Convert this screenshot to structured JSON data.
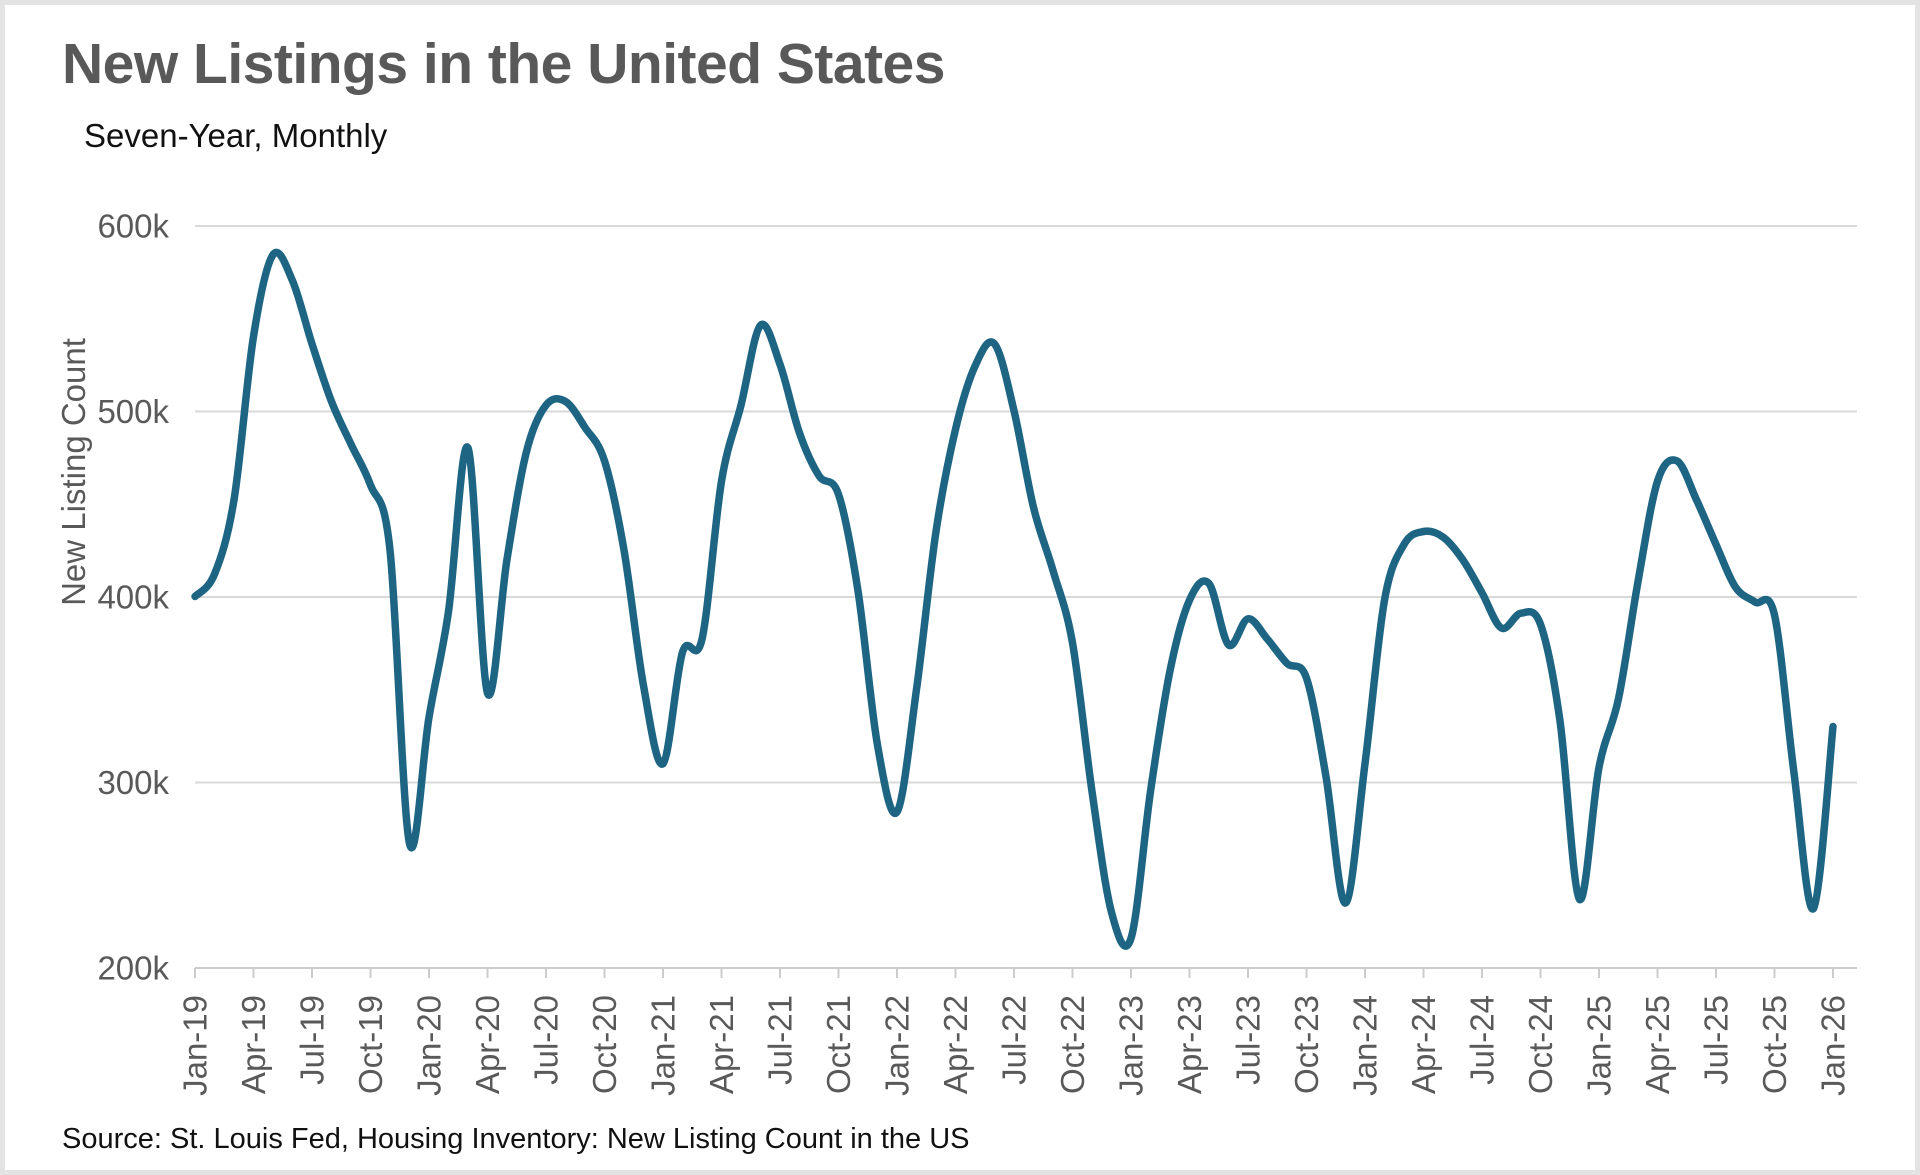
{
  "title": "New Listings in the United States",
  "subtitle": "Seven-Year, Monthly",
  "source": "Source: St. Louis Fed, Housing Inventory: New Listing Count in the US",
  "colors": {
    "line": "#1e6583",
    "gridline": "#d9d9d9",
    "title_text": "#595959",
    "axis_text": "#595959",
    "body_text": "#111111",
    "frame_border": "#e3e3e3"
  },
  "chart_data": {
    "type": "line",
    "title": "New Listings in the United States",
    "subtitle": "Seven-Year, Monthly",
    "xlabel": "",
    "ylabel": "New Listing Count",
    "ylim": [
      200000,
      600000
    ],
    "y_unit": "count",
    "values_unit": "thousands",
    "grid": true,
    "legend": false,
    "line_color": "#1e6583",
    "y_ticks": [
      "600k",
      "500k",
      "400k",
      "300k",
      "200k"
    ],
    "x_tick_labels": [
      "Jan-19",
      "Apr-19",
      "Jul-19",
      "Oct-19",
      "Jan-20",
      "Apr-20",
      "Jul-20",
      "Oct-20",
      "Jan-21",
      "Apr-21",
      "Jul-21",
      "Oct-21",
      "Jan-22",
      "Apr-22",
      "Jul-22",
      "Oct-22",
      "Jan-23",
      "Apr-23",
      "Jul-23",
      "Oct-23",
      "Jan-24",
      "Apr-24",
      "Jul-24",
      "Oct-24",
      "Jan-25",
      "Apr-25",
      "Jul-25",
      "Oct-25",
      "Jan-26"
    ],
    "months": [
      "Jan-19",
      "Feb-19",
      "Mar-19",
      "Apr-19",
      "May-19",
      "Jun-19",
      "Jul-19",
      "Aug-19",
      "Sep-19",
      "Oct-19",
      "Nov-19",
      "Dec-19",
      "Jan-20",
      "Feb-20",
      "Mar-20",
      "Apr-20",
      "May-20",
      "Jun-20",
      "Jul-20",
      "Aug-20",
      "Sep-20",
      "Oct-20",
      "Nov-20",
      "Dec-20",
      "Jan-21",
      "Feb-21",
      "Mar-21",
      "Apr-21",
      "May-21",
      "Jun-21",
      "Jul-21",
      "Aug-21",
      "Sep-21",
      "Oct-21",
      "Nov-21",
      "Dec-21",
      "Jan-22",
      "Feb-22",
      "Mar-22",
      "Apr-22",
      "May-22",
      "Jun-22",
      "Jul-22",
      "Aug-22",
      "Sep-22",
      "Oct-22",
      "Nov-22",
      "Dec-22",
      "Jan-23",
      "Feb-23",
      "Mar-23",
      "Apr-23",
      "May-23",
      "Jun-23",
      "Jul-23",
      "Aug-23",
      "Sep-23",
      "Oct-23",
      "Nov-23",
      "Dec-23",
      "Jan-24",
      "Feb-24",
      "Mar-24",
      "Apr-24",
      "May-24",
      "Jun-24",
      "Jul-24",
      "Aug-24",
      "Sep-24",
      "Oct-24",
      "Nov-24",
      "Dec-24",
      "Jan-25",
      "Feb-25",
      "Mar-25",
      "Apr-25",
      "May-25",
      "Jun-25",
      "Jul-25",
      "Aug-25",
      "Sep-25",
      "Oct-25",
      "Nov-25",
      "Dec-25",
      "Jan-26"
    ],
    "values_k": [
      400,
      412,
      452,
      540,
      584,
      570,
      536,
      505,
      482,
      460,
      425,
      267,
      335,
      392,
      480,
      348,
      420,
      478,
      503,
      505,
      491,
      473,
      425,
      352,
      310,
      370,
      377,
      462,
      503,
      546,
      525,
      488,
      465,
      455,
      403,
      320,
      284,
      350,
      435,
      490,
      524,
      536,
      500,
      448,
      414,
      375,
      295,
      230,
      216,
      295,
      360,
      398,
      407,
      374,
      388,
      377,
      364,
      356,
      303,
      235,
      310,
      398,
      428,
      435,
      432,
      420,
      402,
      383,
      391,
      385,
      333,
      237,
      308,
      345,
      408,
      462,
      473,
      452,
      428,
      405,
      397,
      390,
      305,
      232,
      330
    ]
  }
}
